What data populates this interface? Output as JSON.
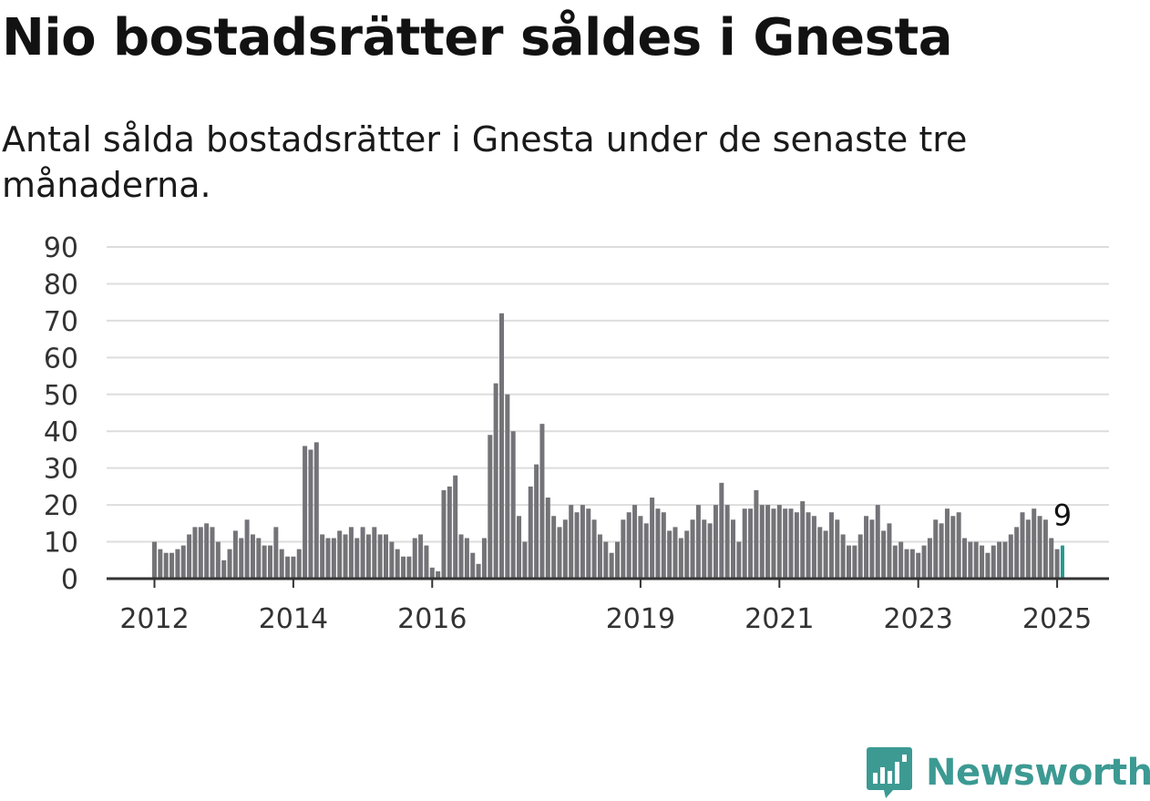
{
  "title": "Nio bostadsrätter såldes i Gnesta",
  "subtitle": "Antal sålda bostadsrätter i Gnesta under de senaste tre månaderna.",
  "logo": {
    "text": "Newsworthy",
    "icon": "newsworthy-logo-icon"
  },
  "colors": {
    "bar": "#747378",
    "highlight": "#279990",
    "grid": "#dddddd",
    "axis": "#333333",
    "brand": "#3c9a93"
  },
  "chart_data": {
    "type": "bar",
    "title": "Nio bostadsrätter såldes i Gnesta",
    "subtitle": "Antal sålda bostadsrätter i Gnesta under de senaste tre månaderna.",
    "xlabel": "",
    "ylabel": "",
    "ylim": [
      0,
      90
    ],
    "yticks": [
      0,
      10,
      20,
      30,
      40,
      50,
      60,
      70,
      80,
      90
    ],
    "grid": true,
    "xtick_labels": [
      "2012",
      "2014",
      "2016",
      "2019",
      "2021",
      "2023",
      "2025"
    ],
    "start_month": "2012-01",
    "frequency": "monthly",
    "values": [
      10,
      8,
      7,
      7,
      8,
      9,
      12,
      14,
      14,
      15,
      14,
      10,
      5,
      8,
      13,
      11,
      16,
      12,
      11,
      9,
      9,
      14,
      8,
      6,
      6,
      8,
      36,
      35,
      37,
      12,
      11,
      11,
      13,
      12,
      14,
      11,
      14,
      12,
      14,
      12,
      12,
      10,
      8,
      6,
      6,
      11,
      12,
      9,
      3,
      2,
      24,
      25,
      28,
      12,
      11,
      7,
      4,
      11,
      39,
      53,
      72,
      50,
      40,
      17,
      10,
      25,
      31,
      42,
      22,
      17,
      14,
      16,
      20,
      18,
      20,
      19,
      16,
      12,
      10,
      7,
      10,
      16,
      18,
      20,
      17,
      15,
      22,
      19,
      18,
      13,
      14,
      11,
      13,
      16,
      20,
      16,
      15,
      20,
      26,
      20,
      16,
      10,
      19,
      19,
      24,
      20,
      20,
      19,
      20,
      19,
      19,
      18,
      21,
      18,
      17,
      14,
      13,
      18,
      16,
      12,
      9,
      9,
      12,
      17,
      16,
      20,
      13,
      15,
      9,
      10,
      8,
      8,
      7,
      9,
      11,
      16,
      15,
      19,
      17,
      18,
      11,
      10,
      10,
      9,
      7,
      9,
      10,
      10,
      12,
      14,
      18,
      16,
      19,
      17,
      16,
      11,
      8,
      9
    ],
    "highlight_last": true,
    "annotation": {
      "label": "9",
      "value": 9,
      "point": "last"
    }
  }
}
